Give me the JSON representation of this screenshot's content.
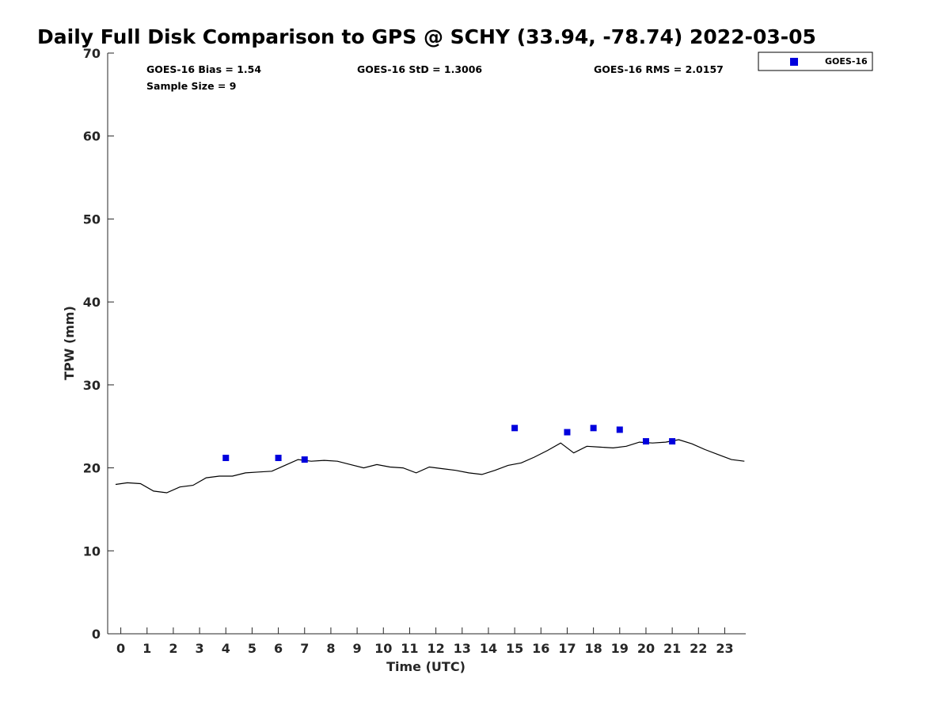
{
  "chart_data": {
    "type": "scatter",
    "title": "Daily Full Disk Comparison to GPS @ SCHY (33.94, -78.74) 2022-03-05",
    "xlabel": "Time (UTC)",
    "ylabel": "TPW (mm)",
    "xlim": [
      -0.5,
      23.8
    ],
    "ylim": [
      0,
      70
    ],
    "x_ticks": [
      0,
      1,
      2,
      3,
      4,
      5,
      6,
      7,
      8,
      9,
      10,
      11,
      12,
      13,
      14,
      15,
      16,
      17,
      18,
      19,
      20,
      21,
      22,
      23
    ],
    "y_ticks": [
      0,
      10,
      20,
      30,
      40,
      50,
      60,
      70
    ],
    "grid": false,
    "legend_position": "top-right outside plot",
    "stats": [
      {
        "text": "GOES-16 Bias = 1.54"
      },
      {
        "text": "GOES-16 StD = 1.3006"
      },
      {
        "text": "GOES-16 RMS = 2.0157"
      },
      {
        "text": "Sample Size = 9"
      }
    ],
    "series": [
      {
        "name": "GOES-16",
        "kind": "scatter",
        "marker": "square",
        "color": "#0000dd",
        "x": [
          4,
          6,
          7,
          15,
          17,
          18,
          19,
          20,
          21
        ],
        "y": [
          21.2,
          21.2,
          21.0,
          24.8,
          24.3,
          24.8,
          24.6,
          23.2,
          23.2
        ]
      },
      {
        "kind": "line",
        "color": "#000000",
        "x": [
          -0.2,
          0.25,
          0.75,
          1.25,
          1.75,
          2.25,
          2.75,
          3.25,
          3.75,
          4.25,
          4.75,
          5.25,
          5.75,
          6.25,
          6.75,
          7.25,
          7.75,
          8.25,
          8.75,
          9.25,
          9.75,
          10.25,
          10.75,
          11.25,
          11.75,
          12.25,
          12.75,
          13.25,
          13.75,
          14.25,
          14.75,
          15.25,
          15.75,
          16.25,
          16.75,
          17.25,
          17.75,
          18.25,
          18.75,
          19.25,
          19.75,
          20.25,
          20.75,
          21.25,
          21.75,
          22.25,
          22.75,
          23.25,
          23.75
        ],
        "y": [
          18.0,
          18.2,
          18.1,
          17.2,
          17.0,
          17.7,
          17.9,
          18.8,
          19.0,
          19.0,
          19.4,
          19.5,
          19.6,
          20.3,
          21.0,
          20.8,
          20.9,
          20.8,
          20.4,
          20.0,
          20.4,
          20.1,
          20.0,
          19.4,
          20.1,
          19.9,
          19.7,
          19.4,
          19.2,
          19.7,
          20.3,
          20.6,
          21.3,
          22.1,
          23.0,
          21.8,
          22.6,
          22.5,
          22.4,
          22.6,
          23.1,
          23.0,
          23.1,
          23.4,
          22.9,
          22.2,
          21.6,
          21.0,
          20.8
        ]
      }
    ]
  }
}
